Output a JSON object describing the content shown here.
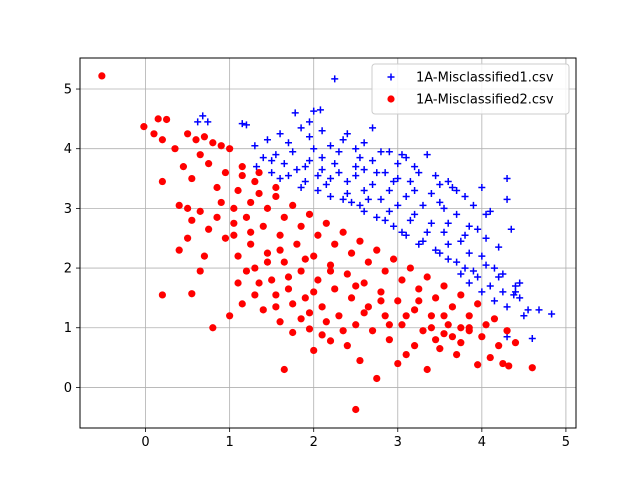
{
  "chart_data": {
    "type": "scatter",
    "title": "",
    "xlabel": "",
    "ylabel": "",
    "xlim": [
      -0.78,
      5.12
    ],
    "ylim": [
      -0.68,
      5.52
    ],
    "xticks": [
      0,
      1,
      2,
      3,
      4,
      5
    ],
    "yticks": [
      0,
      1,
      2,
      3,
      4,
      5
    ],
    "grid": true,
    "legend_position": "top-right",
    "series": [
      {
        "name": "1A-Misclassified1.csv",
        "marker": "plus",
        "color": "#0000ff",
        "points": [
          [
            0.68,
            4.55
          ],
          [
            0.62,
            4.45
          ],
          [
            0.74,
            4.45
          ],
          [
            1.15,
            4.42
          ],
          [
            1.2,
            4.4
          ],
          [
            1.3,
            4.05
          ],
          [
            1.45,
            4.15
          ],
          [
            1.6,
            4.25
          ],
          [
            1.7,
            4.1
          ],
          [
            1.85,
            4.35
          ],
          [
            1.78,
            4.6
          ],
          [
            1.95,
            4.45
          ],
          [
            2.0,
            4.63
          ],
          [
            2.08,
            4.65
          ],
          [
            2.25,
            5.17
          ],
          [
            2.1,
            4.3
          ],
          [
            2.2,
            4.05
          ],
          [
            2.4,
            4.25
          ],
          [
            2.55,
            3.85
          ],
          [
            2.7,
            4.35
          ],
          [
            2.6,
            4.1
          ],
          [
            2.9,
            3.95
          ],
          [
            3.0,
            3.75
          ],
          [
            3.1,
            3.85
          ],
          [
            3.35,
            3.9
          ],
          [
            3.15,
            3.45
          ],
          [
            3.5,
            3.4
          ],
          [
            3.65,
            3.35
          ],
          [
            3.8,
            3.2
          ],
          [
            3.9,
            3.05
          ],
          [
            4.05,
            2.9
          ],
          [
            4.1,
            2.95
          ],
          [
            4.3,
            3.5
          ],
          [
            4.3,
            3.15
          ],
          [
            4.35,
            2.65
          ],
          [
            4.2,
            2.35
          ],
          [
            4.45,
            1.75
          ],
          [
            4.4,
            1.6
          ],
          [
            4.55,
            1.3
          ],
          [
            4.5,
            1.2
          ],
          [
            4.68,
            1.3
          ],
          [
            4.83,
            1.23
          ],
          [
            4.3,
            0.85
          ],
          [
            4.6,
            0.82
          ],
          [
            4.38,
            1.55
          ],
          [
            4.15,
            2.0
          ],
          [
            4.0,
            2.2
          ],
          [
            3.8,
            2.55
          ],
          [
            3.6,
            2.75
          ],
          [
            3.55,
            3.0
          ],
          [
            3.4,
            3.25
          ],
          [
            3.2,
            3.3
          ],
          [
            3.0,
            3.5
          ],
          [
            2.85,
            3.6
          ],
          [
            2.7,
            3.8
          ],
          [
            2.5,
            3.7
          ],
          [
            2.3,
            3.95
          ],
          [
            2.1,
            3.85
          ],
          [
            1.95,
            3.8
          ],
          [
            1.75,
            3.95
          ],
          [
            1.55,
            3.9
          ],
          [
            1.4,
            3.85
          ],
          [
            1.32,
            3.7
          ],
          [
            1.5,
            3.6
          ],
          [
            1.7,
            3.55
          ],
          [
            1.9,
            3.45
          ],
          [
            2.05,
            3.3
          ],
          [
            2.2,
            3.2
          ],
          [
            2.45,
            3.1
          ],
          [
            2.6,
            2.95
          ],
          [
            2.75,
            2.85
          ],
          [
            2.95,
            2.7
          ],
          [
            3.1,
            2.55
          ],
          [
            3.3,
            2.45
          ],
          [
            3.45,
            2.3
          ],
          [
            3.6,
            2.15
          ],
          [
            3.8,
            2.0
          ],
          [
            3.95,
            1.85
          ],
          [
            4.1,
            1.7
          ],
          [
            4.25,
            1.6
          ],
          [
            4.2,
            1.85
          ],
          [
            4.05,
            2.5
          ],
          [
            3.85,
            2.7
          ],
          [
            3.7,
            2.9
          ],
          [
            3.5,
            3.1
          ],
          [
            3.3,
            3.05
          ],
          [
            3.1,
            3.2
          ],
          [
            2.9,
            3.3
          ],
          [
            2.7,
            3.4
          ],
          [
            2.5,
            3.55
          ],
          [
            2.3,
            3.6
          ],
          [
            2.1,
            3.65
          ],
          [
            1.9,
            3.7
          ],
          [
            1.65,
            3.75
          ],
          [
            1.5,
            3.8
          ],
          [
            2.0,
            4.0
          ],
          [
            2.35,
            4.15
          ],
          [
            2.8,
            3.95
          ],
          [
            3.25,
            3.6
          ],
          [
            3.7,
            3.3
          ],
          [
            4.0,
            3.35
          ],
          [
            3.95,
            2.65
          ],
          [
            3.75,
            2.45
          ],
          [
            3.55,
            2.6
          ],
          [
            3.4,
            2.75
          ],
          [
            3.2,
            2.9
          ],
          [
            3.0,
            3.05
          ],
          [
            2.8,
            3.15
          ],
          [
            2.6,
            3.3
          ],
          [
            2.4,
            3.45
          ],
          [
            2.2,
            3.5
          ],
          [
            1.8,
            3.65
          ],
          [
            1.6,
            3.5
          ],
          [
            2.15,
            3.4
          ],
          [
            2.4,
            3.25
          ],
          [
            2.65,
            3.15
          ],
          [
            2.9,
            2.95
          ],
          [
            3.15,
            2.8
          ],
          [
            3.35,
            2.6
          ],
          [
            3.6,
            2.4
          ],
          [
            3.85,
            2.25
          ],
          [
            4.05,
            2.05
          ],
          [
            4.25,
            1.9
          ],
          [
            4.4,
            1.7
          ],
          [
            3.9,
            1.95
          ],
          [
            3.7,
            2.1
          ],
          [
            3.5,
            2.25
          ],
          [
            3.25,
            2.4
          ],
          [
            3.05,
            2.6
          ],
          [
            2.85,
            2.8
          ],
          [
            2.55,
            3.05
          ],
          [
            2.35,
            3.15
          ],
          [
            2.6,
            3.65
          ],
          [
            2.95,
            3.45
          ],
          [
            3.2,
            3.7
          ],
          [
            3.45,
            3.55
          ],
          [
            1.95,
            4.2
          ],
          [
            2.5,
            4.0
          ],
          [
            3.05,
            3.9
          ],
          [
            3.6,
            3.45
          ],
          [
            4.15,
            1.45
          ],
          [
            4.3,
            1.35
          ],
          [
            4.45,
            1.5
          ],
          [
            4.0,
            1.6
          ],
          [
            3.85,
            1.75
          ],
          [
            3.75,
            1.9
          ],
          [
            1.85,
            3.35
          ],
          [
            2.05,
            3.55
          ],
          [
            2.25,
            3.75
          ],
          [
            2.75,
            3.6
          ]
        ]
      },
      {
        "name": "1A-Misclassified2.csv",
        "marker": "circle",
        "color": "#ff0000",
        "points": [
          [
            -0.52,
            5.22
          ],
          [
            -0.02,
            4.37
          ],
          [
            0.15,
            4.5
          ],
          [
            0.25,
            4.49
          ],
          [
            0.1,
            4.25
          ],
          [
            0.2,
            4.15
          ],
          [
            0.5,
            4.25
          ],
          [
            0.35,
            4.0
          ],
          [
            0.6,
            4.15
          ],
          [
            0.7,
            4.2
          ],
          [
            0.8,
            4.1
          ],
          [
            0.9,
            4.05
          ],
          [
            1.0,
            4.0
          ],
          [
            0.65,
            3.9
          ],
          [
            0.75,
            3.75
          ],
          [
            0.45,
            3.7
          ],
          [
            0.2,
            3.45
          ],
          [
            0.55,
            3.5
          ],
          [
            0.4,
            3.05
          ],
          [
            0.5,
            3.0
          ],
          [
            0.65,
            2.95
          ],
          [
            0.55,
            2.8
          ],
          [
            0.75,
            2.65
          ],
          [
            0.95,
            2.5
          ],
          [
            0.5,
            2.5
          ],
          [
            0.4,
            2.3
          ],
          [
            0.7,
            2.2
          ],
          [
            0.65,
            1.95
          ],
          [
            0.2,
            1.55
          ],
          [
            0.55,
            1.57
          ],
          [
            0.8,
            1.0
          ],
          [
            1.0,
            1.2
          ],
          [
            1.15,
            1.4
          ],
          [
            1.4,
            1.3
          ],
          [
            1.6,
            1.1
          ],
          [
            1.75,
            0.92
          ],
          [
            1.95,
            0.98
          ],
          [
            2.0,
            0.62
          ],
          [
            2.2,
            0.78
          ],
          [
            1.65,
            0.3
          ],
          [
            2.5,
            -0.37
          ],
          [
            2.55,
            0.45
          ],
          [
            2.75,
            0.15
          ],
          [
            3.0,
            0.4
          ],
          [
            3.1,
            0.55
          ],
          [
            3.35,
            0.3
          ],
          [
            3.5,
            0.65
          ],
          [
            3.7,
            0.55
          ],
          [
            3.95,
            0.38
          ],
          [
            4.1,
            0.5
          ],
          [
            4.2,
            0.7
          ],
          [
            4.25,
            0.4
          ],
          [
            4.32,
            0.36
          ],
          [
            4.6,
            0.33
          ],
          [
            4.0,
            0.85
          ],
          [
            3.85,
            0.95
          ],
          [
            3.6,
            1.05
          ],
          [
            3.4,
            1.2
          ],
          [
            3.2,
            1.3
          ],
          [
            3.0,
            1.45
          ],
          [
            2.8,
            1.6
          ],
          [
            2.6,
            1.75
          ],
          [
            2.4,
            1.9
          ],
          [
            2.2,
            2.05
          ],
          [
            2.0,
            2.2
          ],
          [
            1.8,
            2.4
          ],
          [
            1.6,
            2.55
          ],
          [
            1.4,
            2.7
          ],
          [
            1.2,
            2.85
          ],
          [
            1.05,
            3.0
          ],
          [
            1.1,
            3.3
          ],
          [
            1.3,
            3.45
          ],
          [
            1.15,
            3.7
          ],
          [
            0.95,
            3.6
          ],
          [
            0.85,
            3.35
          ],
          [
            0.9,
            3.1
          ],
          [
            1.25,
            3.1
          ],
          [
            1.45,
            3.0
          ],
          [
            1.65,
            2.85
          ],
          [
            1.85,
            2.7
          ],
          [
            2.05,
            2.55
          ],
          [
            2.25,
            2.4
          ],
          [
            2.45,
            2.25
          ],
          [
            2.65,
            2.1
          ],
          [
            2.85,
            1.95
          ],
          [
            3.05,
            1.8
          ],
          [
            3.25,
            1.65
          ],
          [
            3.45,
            1.5
          ],
          [
            3.65,
            1.35
          ],
          [
            3.85,
            1.2
          ],
          [
            4.05,
            1.05
          ],
          [
            3.75,
            1.0
          ],
          [
            3.55,
            0.9
          ],
          [
            3.3,
            0.95
          ],
          [
            3.05,
            1.05
          ],
          [
            2.85,
            1.2
          ],
          [
            2.65,
            1.35
          ],
          [
            2.45,
            1.5
          ],
          [
            2.25,
            1.65
          ],
          [
            2.05,
            1.8
          ],
          [
            1.85,
            1.95
          ],
          [
            1.65,
            2.1
          ],
          [
            1.45,
            2.25
          ],
          [
            1.25,
            2.4
          ],
          [
            1.05,
            2.55
          ],
          [
            1.1,
            2.2
          ],
          [
            1.3,
            2.0
          ],
          [
            1.5,
            1.8
          ],
          [
            1.7,
            1.65
          ],
          [
            1.9,
            1.5
          ],
          [
            2.1,
            1.35
          ],
          [
            2.3,
            1.2
          ],
          [
            2.5,
            1.05
          ],
          [
            2.7,
            0.95
          ],
          [
            2.9,
            0.8
          ],
          [
            3.2,
            0.7
          ],
          [
            3.45,
            0.8
          ],
          [
            3.75,
            0.75
          ],
          [
            2.35,
            0.95
          ],
          [
            2.15,
            1.1
          ],
          [
            1.95,
            1.25
          ],
          [
            1.75,
            1.4
          ],
          [
            1.55,
            1.55
          ],
          [
            1.35,
            1.75
          ],
          [
            1.2,
            1.95
          ],
          [
            1.35,
            3.25
          ],
          [
            1.55,
            3.2
          ],
          [
            1.75,
            3.05
          ],
          [
            1.95,
            2.9
          ],
          [
            2.15,
            2.75
          ],
          [
            2.35,
            2.6
          ],
          [
            2.55,
            2.45
          ],
          [
            2.75,
            2.3
          ],
          [
            2.95,
            2.15
          ],
          [
            3.15,
            2.0
          ],
          [
            3.35,
            1.85
          ],
          [
            3.55,
            1.7
          ],
          [
            3.75,
            1.55
          ],
          [
            3.95,
            1.4
          ],
          [
            4.15,
            1.15
          ],
          [
            4.3,
            0.95
          ],
          [
            4.4,
            0.75
          ],
          [
            1.15,
            3.55
          ],
          [
            1.35,
            3.6
          ],
          [
            1.55,
            3.35
          ],
          [
            1.25,
            2.6
          ],
          [
            1.05,
            2.75
          ],
          [
            0.85,
            2.85
          ],
          [
            1.6,
            2.3
          ],
          [
            1.9,
            2.15
          ],
          [
            2.2,
            1.95
          ],
          [
            2.5,
            1.7
          ],
          [
            2.8,
            1.45
          ],
          [
            3.1,
            1.2
          ],
          [
            3.4,
            1.0
          ],
          [
            3.65,
            0.85
          ],
          [
            2.0,
            1.6
          ],
          [
            1.7,
            1.85
          ],
          [
            1.45,
            2.1
          ],
          [
            2.6,
            1.25
          ],
          [
            2.9,
            1.05
          ],
          [
            3.25,
            1.45
          ],
          [
            3.55,
            1.2
          ],
          [
            3.85,
            1.0
          ],
          [
            2.4,
            0.7
          ],
          [
            2.1,
            0.88
          ],
          [
            1.85,
            1.15
          ],
          [
            1.55,
            1.35
          ],
          [
            1.3,
            1.55
          ],
          [
            1.1,
            1.75
          ]
        ]
      }
    ]
  }
}
